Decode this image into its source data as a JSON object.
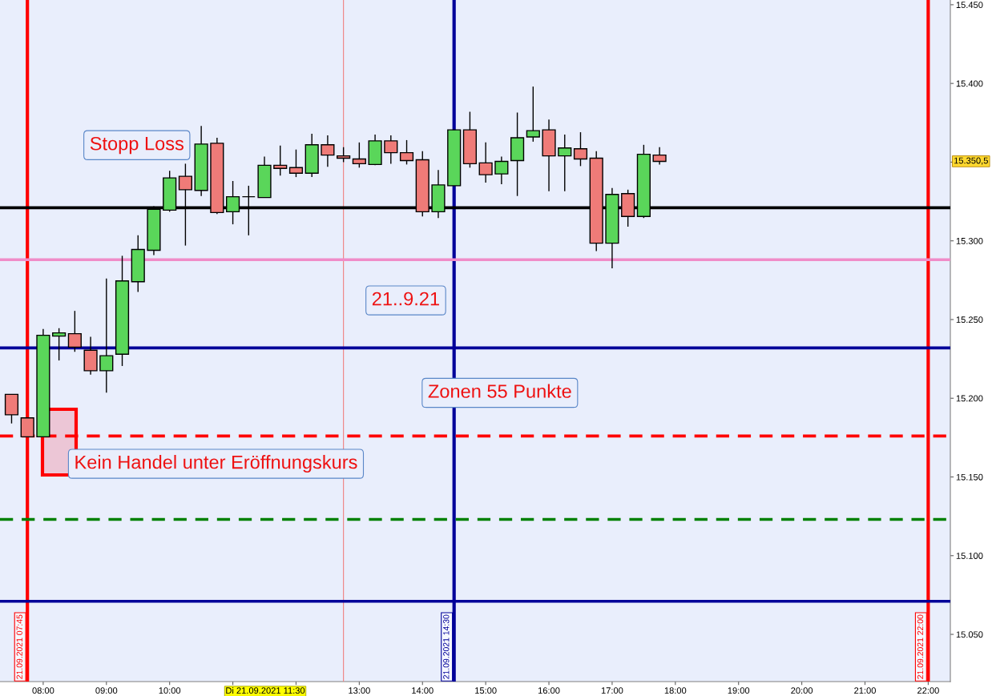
{
  "chart_data": {
    "type": "candlestick",
    "x": [
      "2021-09-21T07:30",
      "2021-09-21T07:45",
      "2021-09-21T08:00",
      "2021-09-21T08:15",
      "2021-09-21T08:30",
      "2021-09-21T08:45",
      "2021-09-21T09:00",
      "2021-09-21T09:15",
      "2021-09-21T09:30",
      "2021-09-21T09:45",
      "2021-09-21T10:00",
      "2021-09-21T10:15",
      "2021-09-21T10:30",
      "2021-09-21T10:45",
      "2021-09-21T11:00",
      "2021-09-21T11:15",
      "2021-09-21T11:30",
      "2021-09-21T11:45",
      "2021-09-21T12:00",
      "2021-09-21T12:15",
      "2021-09-21T12:30",
      "2021-09-21T12:45",
      "2021-09-21T13:00",
      "2021-09-21T13:15",
      "2021-09-21T13:30",
      "2021-09-21T13:45",
      "2021-09-21T14:00",
      "2021-09-21T14:15",
      "2021-09-21T14:30",
      "2021-09-21T14:45",
      "2021-09-21T15:00",
      "2021-09-21T15:15",
      "2021-09-21T15:30",
      "2021-09-21T15:45",
      "2021-09-21T16:00",
      "2021-09-21T16:15",
      "2021-09-21T16:30",
      "2021-09-21T16:45",
      "2021-09-21T17:00",
      "2021-09-21T17:15",
      "2021-09-21T17:30",
      "2021-09-21T17:45"
    ],
    "ohlc": [
      [
        15202.5,
        15202.5,
        15184,
        15189.5
      ],
      [
        15187.5,
        15187.5,
        15175.5,
        15175.5
      ],
      [
        15175.5,
        15244,
        15175.5,
        15240
      ],
      [
        15239.5,
        15244.5,
        15224,
        15241.5
      ],
      [
        15241,
        15255.5,
        15229.5,
        15232.5
      ],
      [
        15230.5,
        15239,
        15215,
        15217.5
      ],
      [
        15217.5,
        15276,
        15203.5,
        15227
      ],
      [
        15228,
        15290.5,
        15220.5,
        15274.5
      ],
      [
        15274,
        15303.5,
        15267.5,
        15294.5
      ],
      [
        15294,
        15322,
        15291,
        15320
      ],
      [
        15319.5,
        15344.5,
        15318.5,
        15340
      ],
      [
        15341,
        15349,
        15297,
        15332.5
      ],
      [
        15332,
        15373,
        15328.5,
        15361.5
      ],
      [
        15362,
        15365.5,
        15317,
        15318
      ],
      [
        15318.5,
        15338,
        15310.5,
        15328
      ],
      [
        15328,
        15335,
        15303.5,
        15328
      ],
      [
        15327.5,
        15353.5,
        15327.5,
        15348
      ],
      [
        15348,
        15360.5,
        15341.5,
        15346
      ],
      [
        15346.5,
        15358,
        15340.5,
        15343
      ],
      [
        15343,
        15368,
        15340.5,
        15361
      ],
      [
        15361,
        15367,
        15347,
        15354.5
      ],
      [
        15354,
        15359.5,
        15350,
        15352.5
      ],
      [
        15352,
        15362.5,
        15346.5,
        15349
      ],
      [
        15348.5,
        15367.5,
        15348,
        15363.5
      ],
      [
        15363.5,
        15367,
        15349,
        15356
      ],
      [
        15356,
        15364,
        15348.5,
        15351
      ],
      [
        15351.5,
        15357,
        15315.5,
        15318.5
      ],
      [
        15318.5,
        15345,
        15314.5,
        15335.5
      ],
      [
        15335,
        15370.5,
        15335,
        15370.5
      ],
      [
        15370.5,
        15382,
        15346.5,
        15349
      ],
      [
        15349.5,
        15362.5,
        15337,
        15342
      ],
      [
        15342.5,
        15353.5,
        15336,
        15350.5
      ],
      [
        15351,
        15381.5,
        15328.5,
        15365.5
      ],
      [
        15366,
        15398,
        15363,
        15370
      ],
      [
        15370.5,
        15377,
        15331.5,
        15354
      ],
      [
        15354,
        15367.5,
        15331.5,
        15359
      ],
      [
        15358.5,
        15369,
        15347.5,
        15352
      ],
      [
        15352.5,
        15357,
        15293.5,
        15298.5
      ],
      [
        15298.5,
        15333.5,
        15282.5,
        15329.5
      ],
      [
        15330,
        15332.5,
        15309,
        15315.5
      ],
      [
        15315.5,
        15361,
        15314.5,
        15355
      ],
      [
        15354.5,
        15359.5,
        15348.5,
        15350.5
      ]
    ],
    "colors": [
      "#ef7b78",
      "#ef7b78",
      "#5ad65a",
      "#5ad65a",
      "#ef7b78",
      "#ef7b78",
      "#5ad65a",
      "#5ad65a",
      "#5ad65a",
      "#5ad65a",
      "#5ad65a",
      "#ef7b78",
      "#5ad65a",
      "#ef7b78",
      "#5ad65a",
      "#000000",
      "#5ad65a",
      "#ef7b78",
      "#ef7b78",
      "#5ad65a",
      "#ef7b78",
      "#ef7b78",
      "#ef7b78",
      "#5ad65a",
      "#ef7b78",
      "#ef7b78",
      "#ef7b78",
      "#5ad65a",
      "#5ad65a",
      "#ef7b78",
      "#ef7b78",
      "#5ad65a",
      "#5ad65a",
      "#5ad65a",
      "#ef7b78",
      "#5ad65a",
      "#ef7b78",
      "#ef7b78",
      "#5ad65a",
      "#ef7b78",
      "#5ad65a",
      "#ef7b78"
    ],
    "xlim": [
      "2021-09-21T07:19",
      "2021-09-21T22:21"
    ],
    "ylim": [
      15020,
      15453
    ],
    "xticks": [
      {
        "value": "2021-09-21T08:00",
        "label": "08:00"
      },
      {
        "value": "2021-09-21T09:00",
        "label": "09:00"
      },
      {
        "value": "2021-09-21T10:00",
        "label": "10:00"
      },
      {
        "value": "2021-09-21T11:00",
        "label": null
      },
      {
        "value": "2021-09-21T12:00",
        "label": null
      },
      {
        "value": "2021-09-21T13:00",
        "label": "13:00"
      },
      {
        "value": "2021-09-21T14:00",
        "label": "14:00"
      },
      {
        "value": "2021-09-21T15:00",
        "label": "15:00"
      },
      {
        "value": "2021-09-21T16:00",
        "label": "16:00"
      },
      {
        "value": "2021-09-21T17:00",
        "label": "17:00"
      },
      {
        "value": "2021-09-21T18:00",
        "label": "18:00"
      },
      {
        "value": "2021-09-21T19:00",
        "label": "19:00"
      },
      {
        "value": "2021-09-21T20:00",
        "label": "20:00"
      },
      {
        "value": "2021-09-21T21:00",
        "label": "21:00"
      },
      {
        "value": "2021-09-21T22:00",
        "label": "22:00"
      }
    ],
    "yticks": [
      {
        "value": 15050,
        "label": "15.050"
      },
      {
        "value": 15100,
        "label": "15.100"
      },
      {
        "value": 15150,
        "label": "15.150"
      },
      {
        "value": 15200,
        "label": "15.200"
      },
      {
        "value": 15250,
        "label": "15.250"
      },
      {
        "value": 15300,
        "label": "15.300"
      },
      {
        "value": 15350,
        "label": null
      },
      {
        "value": 15400,
        "label": "15.400"
      },
      {
        "value": 15450,
        "label": "15.450"
      }
    ],
    "ref_lines": [
      {
        "axis": "x",
        "value": "2021-09-21T07:45",
        "label": "21.09.2021 07:45",
        "color": "#ff0000"
      },
      {
        "axis": "x",
        "value": "2021-09-21T12:45",
        "color": "#f08080"
      },
      {
        "axis": "x",
        "value": "2021-09-21T14:30",
        "label": "21.09.2021 14:30",
        "color": "#000099"
      },
      {
        "axis": "x",
        "value": "2021-09-21T22:00",
        "label": "21.09.2021 22:00",
        "color": "#ff0000"
      },
      {
        "axis": "y",
        "value": 15321,
        "color": "#000000"
      },
      {
        "axis": "y",
        "value": 15288,
        "color": "#f08cc8"
      },
      {
        "axis": "y",
        "value": 15232,
        "color": "#000099"
      },
      {
        "axis": "y",
        "value": 15176,
        "color": "#ff0000",
        "line_style": "dashed"
      },
      {
        "axis": "y",
        "value": 15123,
        "color": "#008000",
        "line_style": "dashed"
      },
      {
        "axis": "y",
        "value": 15071,
        "color": "#000099"
      }
    ],
    "annotations": [
      "Stopp Loss",
      "21..9.21",
      "Zonen 55 Punkte",
      "Kein Handel unter Eröffnungskurs",
      "Di 21.09.2021 11:30",
      "15.350,5"
    ]
  }
}
